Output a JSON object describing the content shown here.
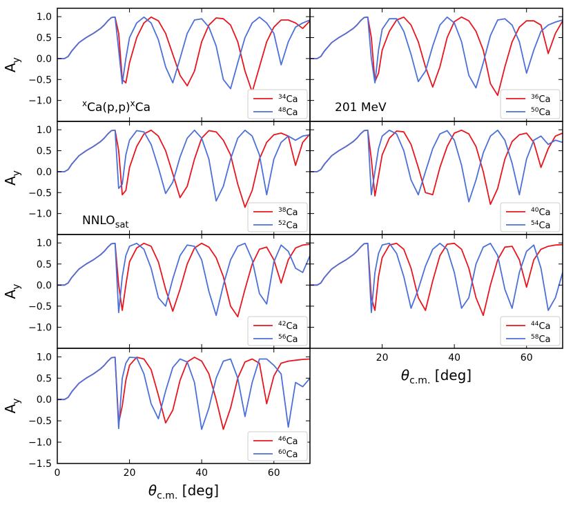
{
  "chart_data": [
    {
      "type": "line",
      "panel": 1,
      "x": [
        0,
        2,
        3,
        4,
        6,
        8,
        10,
        12,
        13,
        14,
        15,
        16,
        17,
        18,
        19,
        20,
        22,
        24,
        26,
        28,
        30,
        32,
        34,
        36,
        38,
        40,
        42,
        44,
        46,
        48,
        50,
        52,
        54,
        56,
        58,
        60,
        62,
        64,
        66,
        68,
        70
      ],
      "series": [
        {
          "name": "34Ca",
          "color": "#e8141c",
          "values": [
            0,
            0,
            0.05,
            0.18,
            0.38,
            0.5,
            0.6,
            0.72,
            0.8,
            0.9,
            0.98,
            0.99,
            0.6,
            -0.5,
            -0.58,
            -0.1,
            0.5,
            0.85,
            0.99,
            0.9,
            0.6,
            0.1,
            -0.4,
            -0.65,
            -0.3,
            0.4,
            0.8,
            0.97,
            0.95,
            0.8,
            0.4,
            -0.3,
            -0.8,
            -0.2,
            0.4,
            0.75,
            0.92,
            0.92,
            0.85,
            0.72,
            0.9
          ]
        },
        {
          "name": "48Ca",
          "color": "#4a6fd8",
          "values": [
            0,
            0,
            0.05,
            0.18,
            0.38,
            0.5,
            0.6,
            0.72,
            0.8,
            0.9,
            0.98,
            0.99,
            0.2,
            -0.6,
            0.0,
            0.5,
            0.85,
            0.99,
            0.85,
            0.45,
            -0.2,
            -0.58,
            0.0,
            0.6,
            0.92,
            0.95,
            0.75,
            0.3,
            -0.5,
            -0.72,
            -0.1,
            0.5,
            0.85,
            0.99,
            0.85,
            0.6,
            -0.15,
            0.4,
            0.75,
            0.85,
            0.92
          ]
        }
      ],
      "legend": [
        "34Ca",
        "48Ca"
      ],
      "annotation": "xCa(p,p)xCa",
      "ylabel": "Ay",
      "yticks": [
        "1.0",
        "0.5",
        "0.0",
        "-0.5",
        "-1.0"
      ]
    },
    {
      "type": "line",
      "panel": 2,
      "x": [
        0,
        2,
        3,
        4,
        6,
        8,
        10,
        12,
        13,
        14,
        15,
        16,
        17,
        18,
        19,
        20,
        22,
        24,
        26,
        28,
        30,
        32,
        34,
        36,
        38,
        40,
        42,
        44,
        46,
        48,
        50,
        52,
        54,
        56,
        58,
        60,
        62,
        64,
        66,
        68,
        70
      ],
      "series": [
        {
          "name": "36Ca",
          "color": "#e8141c",
          "values": [
            0,
            0,
            0.05,
            0.18,
            0.38,
            0.5,
            0.6,
            0.72,
            0.8,
            0.9,
            0.98,
            0.99,
            0.5,
            -0.55,
            -0.35,
            0.2,
            0.65,
            0.92,
            0.99,
            0.8,
            0.4,
            -0.2,
            -0.68,
            -0.2,
            0.5,
            0.88,
            0.99,
            0.9,
            0.65,
            0.2,
            -0.6,
            -0.88,
            -0.2,
            0.4,
            0.75,
            0.9,
            0.9,
            0.8,
            0.12,
            0.6,
            0.9
          ]
        },
        {
          "name": "50Ca",
          "color": "#4a6fd8",
          "values": [
            0,
            0,
            0.05,
            0.18,
            0.38,
            0.5,
            0.6,
            0.72,
            0.8,
            0.9,
            0.98,
            0.99,
            0.0,
            -0.58,
            0.2,
            0.7,
            0.95,
            0.95,
            0.65,
            0.1,
            -0.55,
            -0.3,
            0.3,
            0.8,
            0.99,
            0.85,
            0.4,
            -0.4,
            -0.7,
            -0.1,
            0.55,
            0.92,
            0.95,
            0.8,
            0.4,
            -0.35,
            0.2,
            0.65,
            0.8,
            0.87,
            0.92
          ]
        }
      ],
      "legend": [
        "36Ca",
        "50Ca"
      ],
      "annotation": "201 MeV"
    },
    {
      "type": "line",
      "panel": 3,
      "x": [
        0,
        2,
        3,
        4,
        6,
        8,
        10,
        12,
        13,
        14,
        15,
        16,
        17,
        18,
        19,
        20,
        22,
        24,
        26,
        28,
        30,
        32,
        34,
        36,
        38,
        40,
        42,
        44,
        46,
        48,
        50,
        52,
        54,
        56,
        58,
        60,
        62,
        64,
        66,
        68,
        70
      ],
      "series": [
        {
          "name": "38Ca",
          "color": "#e8141c",
          "values": [
            0,
            0,
            0.05,
            0.18,
            0.38,
            0.5,
            0.6,
            0.72,
            0.8,
            0.9,
            0.98,
            0.99,
            0.5,
            -0.55,
            -0.45,
            0.1,
            0.6,
            0.9,
            0.99,
            0.85,
            0.5,
            -0.05,
            -0.62,
            -0.35,
            0.3,
            0.8,
            0.98,
            0.95,
            0.75,
            0.4,
            -0.3,
            -0.85,
            -0.45,
            0.3,
            0.7,
            0.88,
            0.92,
            0.85,
            0.15,
            0.7,
            0.9
          ]
        },
        {
          "name": "52Ca",
          "color": "#4a6fd8",
          "values": [
            0,
            0,
            0.05,
            0.18,
            0.38,
            0.5,
            0.6,
            0.72,
            0.8,
            0.9,
            0.98,
            0.99,
            -0.4,
            -0.3,
            0.4,
            0.75,
            0.98,
            0.95,
            0.65,
            0.1,
            -0.52,
            -0.25,
            0.35,
            0.8,
            0.99,
            0.8,
            0.3,
            -0.7,
            -0.35,
            0.3,
            0.8,
            0.99,
            0.85,
            0.4,
            -0.55,
            0.3,
            0.7,
            0.85,
            0.75,
            0.85,
            0.88
          ]
        }
      ],
      "legend": [
        "38Ca",
        "52Ca"
      ],
      "annotation": "NNLOsat",
      "ylabel": "Ay",
      "yticks": [
        "1.0",
        "0.5",
        "0.0",
        "-0.5",
        "-1.0"
      ]
    },
    {
      "type": "line",
      "panel": 4,
      "x": [
        0,
        2,
        3,
        4,
        6,
        8,
        10,
        12,
        13,
        14,
        15,
        16,
        17,
        18,
        19,
        20,
        22,
        24,
        26,
        28,
        30,
        32,
        34,
        36,
        38,
        40,
        42,
        44,
        46,
        48,
        50,
        52,
        54,
        56,
        58,
        60,
        62,
        64,
        66,
        68,
        70
      ],
      "series": [
        {
          "name": "40Ca",
          "color": "#e8141c",
          "values": [
            0,
            0,
            0.05,
            0.18,
            0.38,
            0.5,
            0.6,
            0.72,
            0.8,
            0.9,
            0.98,
            0.99,
            0.3,
            -0.58,
            -0.1,
            0.4,
            0.8,
            0.97,
            0.95,
            0.65,
            0.1,
            -0.5,
            -0.55,
            0.1,
            0.6,
            0.92,
            0.99,
            0.9,
            0.6,
            0.0,
            -0.78,
            -0.4,
            0.3,
            0.72,
            0.88,
            0.92,
            0.7,
            0.1,
            0.55,
            0.85,
            0.92
          ]
        },
        {
          "name": "54Ca",
          "color": "#4a6fd8",
          "values": [
            0,
            0,
            0.05,
            0.18,
            0.38,
            0.5,
            0.6,
            0.72,
            0.8,
            0.9,
            0.98,
            0.99,
            -0.55,
            0.0,
            0.55,
            0.85,
            0.99,
            0.9,
            0.5,
            -0.2,
            -0.55,
            0.0,
            0.55,
            0.9,
            0.98,
            0.75,
            0.15,
            -0.72,
            -0.2,
            0.45,
            0.85,
            0.99,
            0.75,
            0.2,
            -0.55,
            0.3,
            0.75,
            0.85,
            0.65,
            0.75,
            0.7
          ]
        }
      ],
      "legend": [
        "40Ca",
        "54Ca"
      ]
    },
    {
      "type": "line",
      "panel": 5,
      "x": [
        0,
        2,
        3,
        4,
        6,
        8,
        10,
        12,
        13,
        14,
        15,
        16,
        17,
        18,
        19,
        20,
        22,
        24,
        26,
        28,
        30,
        32,
        34,
        36,
        38,
        40,
        42,
        44,
        46,
        48,
        50,
        52,
        54,
        56,
        58,
        60,
        62,
        64,
        66,
        68,
        70
      ],
      "series": [
        {
          "name": "42Ca",
          "color": "#e8141c",
          "values": [
            0,
            0,
            0.05,
            0.18,
            0.38,
            0.5,
            0.6,
            0.72,
            0.8,
            0.9,
            0.98,
            0.99,
            0.0,
            -0.6,
            0.0,
            0.55,
            0.88,
            0.99,
            0.92,
            0.55,
            -0.1,
            -0.62,
            -0.1,
            0.5,
            0.88,
            0.99,
            0.9,
            0.65,
            0.2,
            -0.5,
            -0.75,
            -0.1,
            0.5,
            0.85,
            0.9,
            0.6,
            0.05,
            0.6,
            0.88,
            0.95,
            0.97
          ]
        },
        {
          "name": "56Ca",
          "color": "#4a6fd8",
          "values": [
            0,
            0,
            0.05,
            0.18,
            0.38,
            0.5,
            0.6,
            0.72,
            0.8,
            0.9,
            0.98,
            0.99,
            -0.65,
            0.2,
            0.7,
            0.92,
            0.99,
            0.85,
            0.4,
            -0.3,
            -0.5,
            0.15,
            0.7,
            0.95,
            0.92,
            0.6,
            -0.15,
            -0.72,
            0.0,
            0.6,
            0.92,
            0.99,
            0.6,
            -0.2,
            -0.45,
            0.55,
            0.95,
            0.8,
            0.4,
            0.3,
            0.7
          ]
        }
      ],
      "legend": [
        "42Ca",
        "56Ca"
      ],
      "ylabel": "Ay",
      "yticks": [
        "1.0",
        "0.5",
        "0.0",
        "-0.5",
        "-1.0"
      ]
    },
    {
      "type": "line",
      "panel": 6,
      "x": [
        0,
        2,
        3,
        4,
        6,
        8,
        10,
        12,
        13,
        14,
        15,
        16,
        17,
        18,
        19,
        20,
        22,
        24,
        26,
        28,
        30,
        32,
        34,
        36,
        38,
        40,
        42,
        44,
        46,
        48,
        50,
        52,
        54,
        56,
        58,
        60,
        62,
        64,
        66,
        68,
        70
      ],
      "series": [
        {
          "name": "44Ca",
          "color": "#e8141c",
          "values": [
            0,
            0,
            0.05,
            0.18,
            0.38,
            0.5,
            0.6,
            0.72,
            0.8,
            0.9,
            0.98,
            0.99,
            -0.3,
            -0.6,
            0.2,
            0.65,
            0.95,
            0.99,
            0.85,
            0.4,
            -0.3,
            -0.6,
            0.1,
            0.7,
            0.97,
            0.99,
            0.85,
            0.4,
            -0.3,
            -0.72,
            0.0,
            0.6,
            0.9,
            0.92,
            0.6,
            -0.05,
            0.6,
            0.85,
            0.92,
            0.95,
            0.96
          ]
        },
        {
          "name": "58Ca",
          "color": "#4a6fd8",
          "values": [
            0,
            0,
            0.05,
            0.18,
            0.38,
            0.5,
            0.6,
            0.72,
            0.8,
            0.9,
            0.98,
            0.99,
            -0.65,
            0.3,
            0.75,
            0.95,
            0.99,
            0.75,
            0.2,
            -0.55,
            -0.1,
            0.45,
            0.85,
            0.99,
            0.85,
            0.3,
            -0.55,
            -0.3,
            0.5,
            0.9,
            0.99,
            0.7,
            -0.1,
            -0.55,
            0.3,
            0.8,
            0.95,
            0.4,
            -0.6,
            -0.3,
            0.3
          ]
        }
      ],
      "legend": [
        "44Ca",
        "58Ca"
      ],
      "xlabel": "θc.m. [deg]",
      "xticks": [
        "20",
        "40",
        "60"
      ]
    },
    {
      "type": "line",
      "panel": 7,
      "x": [
        0,
        2,
        3,
        4,
        6,
        8,
        10,
        12,
        13,
        14,
        15,
        16,
        17,
        18,
        19,
        20,
        22,
        24,
        26,
        28,
        30,
        32,
        34,
        36,
        38,
        40,
        42,
        44,
        46,
        48,
        50,
        52,
        54,
        56,
        58,
        60,
        62,
        64,
        66,
        68,
        70
      ],
      "series": [
        {
          "name": "46Ca",
          "color": "#e8141c",
          "values": [
            0,
            0,
            0.05,
            0.18,
            0.38,
            0.5,
            0.6,
            0.72,
            0.8,
            0.9,
            0.98,
            0.99,
            -0.55,
            -0.15,
            0.45,
            0.8,
            0.99,
            0.95,
            0.7,
            0.1,
            -0.55,
            -0.25,
            0.45,
            0.88,
            0.99,
            0.9,
            0.6,
            0.0,
            -0.7,
            -0.2,
            0.5,
            0.88,
            0.95,
            0.85,
            -0.1,
            0.55,
            0.85,
            0.9,
            0.92,
            0.94,
            0.95
          ]
        },
        {
          "name": "60Ca",
          "color": "#4a6fd8",
          "values": [
            0,
            0,
            0.05,
            0.18,
            0.38,
            0.5,
            0.6,
            0.72,
            0.8,
            0.9,
            0.98,
            0.99,
            -0.68,
            0.5,
            0.85,
            0.99,
            0.98,
            0.6,
            -0.1,
            -0.45,
            0.2,
            0.75,
            0.95,
            0.88,
            0.4,
            -0.7,
            -0.2,
            0.5,
            0.9,
            0.95,
            0.5,
            -0.4,
            0.4,
            0.95,
            0.95,
            0.8,
            0.6,
            -0.65,
            0.4,
            0.3,
            0.5
          ]
        }
      ],
      "legend": [
        "46Ca",
        "60Ca"
      ],
      "ylabel": "Ay",
      "xlabel": "θc.m. [deg]",
      "yticks": [
        "1.0",
        "0.5",
        "0.0",
        "-0.5",
        "-1.0",
        "-1.5"
      ],
      "xticks": [
        "0",
        "20",
        "40",
        "60"
      ]
    }
  ],
  "axes": {
    "xlim": [
      0,
      70
    ],
    "ylim": [
      -1.5,
      1.2
    ]
  }
}
